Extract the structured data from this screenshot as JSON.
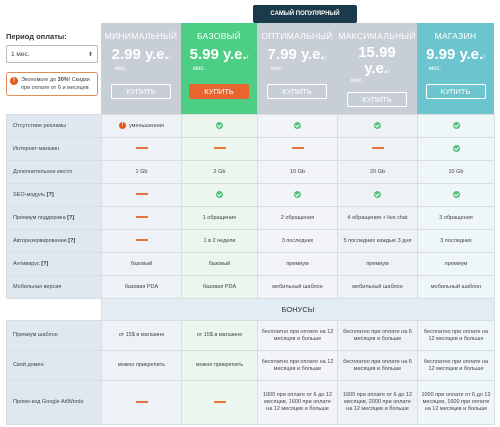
{
  "period": {
    "label": "Период оплаты:",
    "selected": "1 мес.",
    "note_pre": "Экономьте до ",
    "note_bold": "30%",
    "note_post": "! Скидки при оплате от 6 и месяцев"
  },
  "popular_badge": "САМЫЙ ПОПУЛЯРНЫЙ",
  "colors": {
    "minimal": "#c8ced6",
    "base": "#4ccf84",
    "optimal": "#c8ced6",
    "maximal": "#c8ced6",
    "shop": "#6cc4ce",
    "buy_active": "#e8652f"
  },
  "plans": [
    {
      "key": "minimal",
      "name": "МИНИМАЛЬНЫЙ",
      "price": "2.99 у.е.",
      "unit": "/",
      "per": "мес.",
      "buy": "КУПИТЬ"
    },
    {
      "key": "base",
      "name": "БАЗОВЫЙ",
      "price": "5.99 у.е.",
      "unit": "/",
      "per": "мес.",
      "buy": "КУПИТЬ"
    },
    {
      "key": "optimal",
      "name": "ОПТИМАЛЬНЫЙ",
      "price": "7.99 у.е.",
      "unit": "/",
      "per": "мес.",
      "buy": "КУПИТЬ"
    },
    {
      "key": "maximal",
      "name": "МАКСИМАЛЬНЫЙ",
      "price_l1": "15.99",
      "price_l2": "у.е.",
      "unit": "/",
      "per": "мес.",
      "buy": "КУПИТЬ"
    },
    {
      "key": "shop",
      "name": "МАГАЗИН",
      "price": "9.99 у.е.",
      "unit": "/",
      "per": "мес.",
      "buy": "КУПИТЬ"
    }
  ],
  "features": [
    {
      "label": "Отсутствие рекламы",
      "help": "",
      "cells": [
        {
          "t": "warn",
          "v": "уменьшенная"
        },
        {
          "t": "check"
        },
        {
          "t": "check"
        },
        {
          "t": "check"
        },
        {
          "t": "check"
        }
      ]
    },
    {
      "label": "Интернет-магазин",
      "help": "",
      "cells": [
        {
          "t": "dash"
        },
        {
          "t": "dash"
        },
        {
          "t": "dash"
        },
        {
          "t": "dash"
        },
        {
          "t": "check"
        }
      ]
    },
    {
      "label": "Дополнительное место",
      "help": "",
      "cells": [
        {
          "t": "text",
          "v": "1 Gb"
        },
        {
          "t": "text",
          "v": "2 Gb"
        },
        {
          "t": "text",
          "v": "10 Gb"
        },
        {
          "t": "text",
          "v": "20 Gb"
        },
        {
          "t": "text",
          "v": "10 Gb"
        }
      ]
    },
    {
      "label": "SEO-модуль",
      "help": "[?]",
      "cells": [
        {
          "t": "dash"
        },
        {
          "t": "check"
        },
        {
          "t": "check"
        },
        {
          "t": "check"
        },
        {
          "t": "check"
        }
      ]
    },
    {
      "label": "Премиум поддержка",
      "help": "[?]",
      "cells": [
        {
          "t": "dash"
        },
        {
          "t": "text",
          "v": "1 обращение"
        },
        {
          "t": "text",
          "v": "2 обращения"
        },
        {
          "t": "text",
          "v": "4 обращения + live chat"
        },
        {
          "t": "text",
          "v": "3 обращения"
        }
      ]
    },
    {
      "label": "Авторезервирование",
      "help": "[?]",
      "cells": [
        {
          "t": "dash"
        },
        {
          "t": "text",
          "v": "1 в 2 недели"
        },
        {
          "t": "text",
          "v": "3 последних"
        },
        {
          "t": "text",
          "v": "5 последних каждые 3 дня"
        },
        {
          "t": "text",
          "v": "3 последних"
        }
      ]
    },
    {
      "label": "Антивирус",
      "help": "[?]",
      "cells": [
        {
          "t": "text",
          "v": "базовый"
        },
        {
          "t": "text",
          "v": "базовый"
        },
        {
          "t": "text",
          "v": "премиум"
        },
        {
          "t": "text",
          "v": "премиум"
        },
        {
          "t": "text",
          "v": "премиум"
        }
      ]
    },
    {
      "label": "Мобильная версия",
      "help": "",
      "cells": [
        {
          "t": "text",
          "v": "базовая PDA"
        },
        {
          "t": "text",
          "v": "базовая PDA"
        },
        {
          "t": "text",
          "v": "мобильный шаблон"
        },
        {
          "t": "text",
          "v": "мобильный шаблон"
        },
        {
          "t": "text",
          "v": "мобильный шаблон"
        }
      ]
    }
  ],
  "bonus_title": "БОНУСЫ",
  "bonuses": [
    {
      "label": "Премиум шаблон",
      "cells": [
        {
          "t": "text",
          "v": "от 15$ в магазине"
        },
        {
          "t": "text",
          "v": "от 15$ в магазине"
        },
        {
          "t": "text",
          "v": "бесплатно при оплате на 12 месяцев и больше"
        },
        {
          "t": "text",
          "v": "бесплатно при оплате на 6 месяцев и больше"
        },
        {
          "t": "text",
          "v": "бесплатно при оплате на 12 месяцев и больше"
        }
      ]
    },
    {
      "label": "Свой домен",
      "cells": [
        {
          "t": "text",
          "v": "можно прикрепить"
        },
        {
          "t": "text",
          "v": "можно прикрепить"
        },
        {
          "t": "text",
          "v": "бесплатно при оплате на 12 месяцев и больше"
        },
        {
          "t": "text",
          "v": "бесплатно при оплате на 6 месяцев и больше"
        },
        {
          "t": "text",
          "v": "бесплатно при оплате на 12 месяцев и больше"
        }
      ]
    },
    {
      "label": "Промо-код Google AdWords",
      "cells": [
        {
          "t": "dash"
        },
        {
          "t": "dash"
        },
        {
          "t": "text",
          "v": "1000 при оплате от 6 до 12 месяцев, 1600 при оплате на 12 месяцев и больше"
        },
        {
          "t": "text",
          "v": "1600 при оплате от 6 до 12 месяцев, 2000 при оплате на 12 месяцев и больше"
        },
        {
          "t": "text",
          "v": "1000 при оплате от 6 до 12 месяцев, 1600 при оплате на 12 месяцев и больше"
        }
      ]
    }
  ]
}
